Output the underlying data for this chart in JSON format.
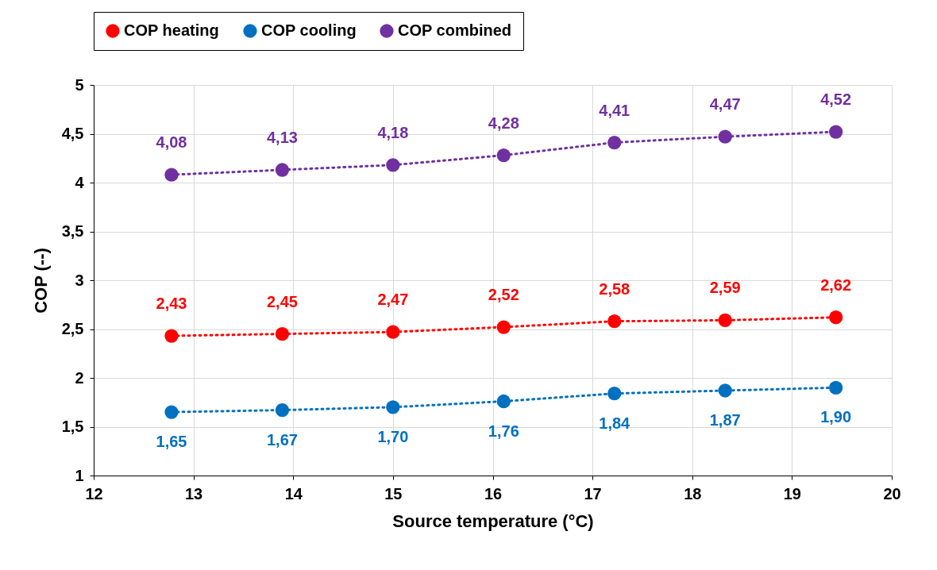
{
  "chart_data": {
    "type": "line",
    "xlabel": "Source temperature (°C)",
    "ylabel": "COP (--)",
    "x": [
      12.78,
      13.89,
      15,
      16.11,
      17.22,
      18.33,
      19.44
    ],
    "series": [
      {
        "name": "COP heating",
        "color": "#ff0000",
        "values": [
          2.43,
          2.45,
          2.47,
          2.52,
          2.58,
          2.59,
          2.62
        ],
        "value_labels": [
          "2,43",
          "2,45",
          "2,47",
          "2,52",
          "2,58",
          "2,59",
          "2,62"
        ]
      },
      {
        "name": "COP cooling",
        "color": "#0070c0",
        "values": [
          1.65,
          1.67,
          1.7,
          1.76,
          1.84,
          1.87,
          1.9
        ],
        "value_labels": [
          "1,65",
          "1,67",
          "1,70",
          "1,76",
          "1,84",
          "1,87",
          "1,90"
        ]
      },
      {
        "name": "COP combined",
        "color": "#7030a0",
        "values": [
          4.08,
          4.13,
          4.18,
          4.28,
          4.41,
          4.47,
          4.52
        ],
        "value_labels": [
          "4,08",
          "4,13",
          "4,18",
          "4,28",
          "4,41",
          "4,47",
          "4,52"
        ]
      }
    ],
    "xlim": [
      12,
      20
    ],
    "xticks": [
      12,
      13,
      14,
      15,
      16,
      17,
      18,
      19,
      20
    ],
    "ylim": [
      1,
      5
    ],
    "yticks": [
      1,
      {
        "value": 1.5,
        "label": "1,5"
      },
      2,
      {
        "value": 2.5,
        "label": "2,5"
      },
      3,
      {
        "value": 3.5,
        "label": "3,5"
      },
      4,
      {
        "value": 4.5,
        "label": "4,5"
      },
      5
    ],
    "grid": true,
    "legend": "top",
    "marker": "circle",
    "line_style": "dotted"
  }
}
